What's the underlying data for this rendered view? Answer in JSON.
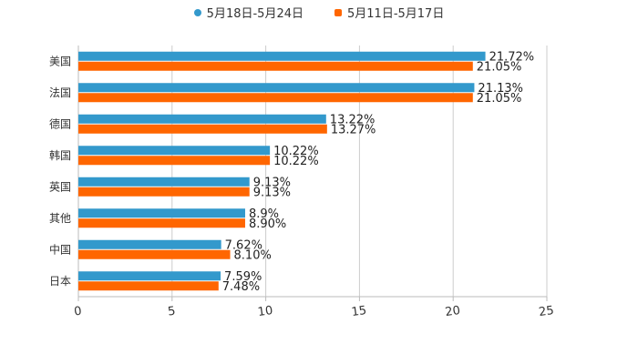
{
  "chart_data": {
    "type": "bar",
    "orientation": "horizontal",
    "categories": [
      "美国",
      "法国",
      "德国",
      "韩国",
      "英国",
      "其他",
      "中国",
      "日本"
    ],
    "series": [
      {
        "name": "5月18日-5月24日",
        "color": "#3399CC",
        "values": [
          21.72,
          21.13,
          13.22,
          10.22,
          9.13,
          8.9,
          7.62,
          7.59
        ],
        "labels": [
          "21.72%",
          "21.13%",
          "13.22%",
          "10.22%",
          "9.13%",
          "8.9%",
          "7.62%",
          "7.59%"
        ]
      },
      {
        "name": "5月11日-5月17日",
        "color": "#FF6600",
        "values": [
          21.05,
          21.05,
          13.27,
          10.22,
          9.13,
          8.9,
          8.1,
          7.48
        ],
        "labels": [
          "21.05%",
          "21.05%",
          "13.27%",
          "10.22%",
          "9.13%",
          "8.90%",
          "8.10%",
          "7.48%"
        ]
      }
    ],
    "xlim": [
      0,
      25
    ],
    "xticks": [
      "0",
      "5",
      "10",
      "15",
      "20",
      "25"
    ],
    "xtick_values": [
      0,
      5,
      10,
      15,
      20,
      25
    ],
    "grid": true,
    "legend_position": "top-center"
  }
}
